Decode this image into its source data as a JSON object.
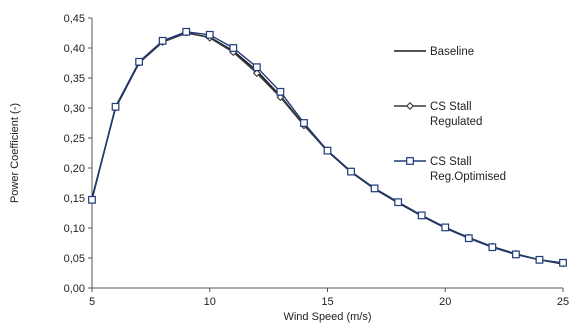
{
  "chart_data": {
    "type": "line",
    "title": "",
    "xlabel": "Wind Speed (m/s)",
    "ylabel": "Power Coefficient (-)",
    "xlim": [
      5,
      25
    ],
    "ylim": [
      0,
      0.45
    ],
    "x_ticks": [
      "5",
      "10",
      "15",
      "20",
      "25"
    ],
    "y_ticks": [
      "0,00",
      "0,05",
      "0,10",
      "0,15",
      "0,20",
      "0,25",
      "0,30",
      "0,35",
      "0,40",
      "0,45"
    ],
    "grid": false,
    "legend_position": "right",
    "x": [
      5,
      6,
      7,
      8,
      9,
      10,
      11,
      12,
      13,
      14,
      15,
      16,
      17,
      18,
      19,
      20,
      21,
      22,
      23,
      24,
      25
    ],
    "series": [
      {
        "name": "Baseline",
        "legend_lines": [
          "Baseline"
        ],
        "marker": "none",
        "color": "#1a1a1a",
        "values": [
          0.15,
          0.3,
          0.375,
          0.41,
          0.425,
          0.418,
          0.395,
          0.362,
          0.32,
          0.272,
          0.228,
          0.193,
          0.165,
          0.142,
          0.12,
          0.1,
          0.083,
          0.068,
          0.056,
          0.047,
          0.04
        ]
      },
      {
        "name": "CS Stall Regulated",
        "legend_lines": [
          "CS Stall",
          "Regulated"
        ],
        "marker": "diamond",
        "color": "#3a3a3a",
        "values": [
          0.148,
          0.302,
          0.376,
          0.41,
          0.426,
          0.417,
          0.393,
          0.358,
          0.318,
          0.271,
          0.229,
          0.194,
          0.166,
          0.143,
          0.121,
          0.101,
          0.084,
          0.069,
          0.057,
          0.047,
          0.041
        ]
      },
      {
        "name": "CS Stall Reg.Optimised",
        "legend_lines": [
          "CS Stall",
          "Reg.Optimised"
        ],
        "marker": "square",
        "color": "#1f3a7a",
        "values": [
          0.147,
          0.302,
          0.377,
          0.412,
          0.427,
          0.422,
          0.4,
          0.368,
          0.327,
          0.275,
          0.229,
          0.194,
          0.166,
          0.143,
          0.121,
          0.101,
          0.083,
          0.068,
          0.056,
          0.047,
          0.042
        ]
      }
    ]
  }
}
